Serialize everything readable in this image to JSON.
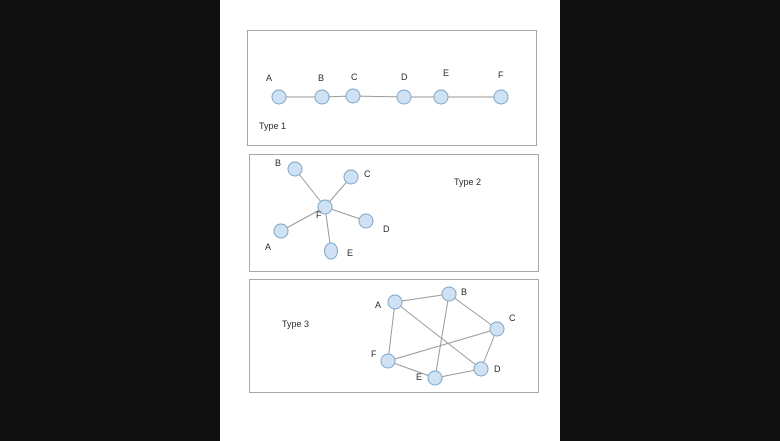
{
  "diagrams": [
    {
      "id": "type1",
      "title": "Type 1",
      "nodes": [
        "A",
        "B",
        "C",
        "D",
        "E",
        "F"
      ],
      "edges": [
        [
          "A",
          "B"
        ],
        [
          "B",
          "C"
        ],
        [
          "C",
          "D"
        ],
        [
          "D",
          "E"
        ],
        [
          "E",
          "F"
        ]
      ]
    },
    {
      "id": "type2",
      "title": "Type 2",
      "nodes": [
        "B",
        "C",
        "F",
        "D",
        "A",
        "E"
      ],
      "edges": [
        [
          "F",
          "B"
        ],
        [
          "F",
          "C"
        ],
        [
          "F",
          "D"
        ],
        [
          "F",
          "A"
        ],
        [
          "F",
          "E"
        ]
      ]
    },
    {
      "id": "type3",
      "title": "Type 3",
      "nodes": [
        "A",
        "B",
        "C",
        "D",
        "E",
        "F"
      ],
      "edges": [
        [
          "A",
          "B"
        ],
        [
          "B",
          "C"
        ],
        [
          "C",
          "D"
        ],
        [
          "D",
          "E"
        ],
        [
          "E",
          "F"
        ],
        [
          "F",
          "A"
        ],
        [
          "A",
          "D"
        ],
        [
          "B",
          "E"
        ],
        [
          "F",
          "C"
        ]
      ]
    }
  ]
}
